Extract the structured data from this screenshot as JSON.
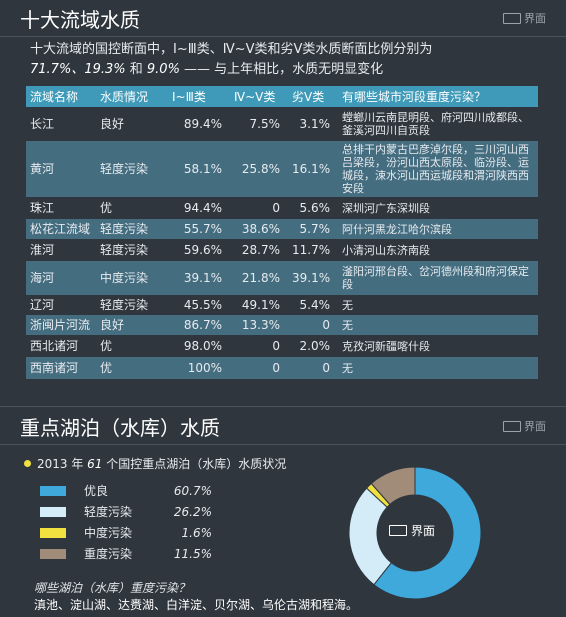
{
  "section1": {
    "title": "十大流域水质",
    "logo_text": "界面",
    "intro_line1": "十大流域的国控断面中，Ⅰ~Ⅲ类、Ⅳ~Ⅴ类和劣Ⅴ类水质断面比例分别为",
    "intro_p1": "71.7%、",
    "intro_p2": "19.3%",
    "intro_and": " 和 ",
    "intro_p3": "9.0%",
    "intro_tail": " —— 与上年相比，水质无明显变化"
  },
  "table": {
    "headers": [
      "流域名称",
      "水质情况",
      "Ⅰ~Ⅲ类",
      "Ⅳ~Ⅴ类",
      "劣Ⅴ类",
      "有哪些城市河段重度污染？"
    ],
    "rows": [
      [
        "长江",
        "良好",
        "89.4%",
        "7.5%",
        "3.1%",
        "螳螂川云南昆明段、府河四川成都段、釜溪河四川自贡段"
      ],
      [
        "黄河",
        "轻度污染",
        "58.1%",
        "25.8%",
        "16.1%",
        "总排干内蒙古巴彦淖尔段，三川河山西吕梁段，汾河山西太原段、临汾段、运城段，涑水河山西运城段和渭河陕西西安段"
      ],
      [
        "珠江",
        "优",
        "94.4%",
        "0",
        "5.6%",
        "深圳河广东深圳段"
      ],
      [
        "松花江流域",
        "轻度污染",
        "55.7%",
        "38.6%",
        "5.7%",
        "阿什河黑龙江哈尔滨段"
      ],
      [
        "淮河",
        "轻度污染",
        "59.6%",
        "28.7%",
        "11.7%",
        "小清河山东济南段"
      ],
      [
        "海河",
        "中度污染",
        "39.1%",
        "21.8%",
        "39.1%",
        "滏阳河邢台段、岔河德州段和府河保定段"
      ],
      [
        "辽河",
        "轻度污染",
        "45.5%",
        "49.1%",
        "5.4%",
        "无"
      ],
      [
        "浙闽片河流",
        "良好",
        "86.7%",
        "13.3%",
        "0",
        "无"
      ],
      [
        "西北诸河",
        "优",
        "98.0%",
        "0",
        "2.0%",
        "克孜河新疆喀什段"
      ],
      [
        "西南诸河",
        "优",
        "100%",
        "0",
        "0",
        "无"
      ]
    ]
  },
  "section2": {
    "title": "重点湖泊（水库）水质",
    "logo_text": "界面",
    "subhead_pre": "2013 年 ",
    "subhead_num": "61",
    "subhead_post": " 个国控重点湖泊（水库）水质状况",
    "center_logo_text": "界面",
    "question": "哪些湖泊（水库）重度污染？",
    "answer": "滇池、淀山湖、达赉湖、白洋淀、贝尔湖、乌伦古湖和程海。"
  },
  "chart_data": {
    "type": "pie",
    "title": "2013 年 61 个国控重点湖泊（水库）水质状况",
    "categories": [
      "优良",
      "轻度污染",
      "中度污染",
      "重度污染"
    ],
    "values": [
      60.7,
      26.2,
      1.6,
      11.5
    ],
    "labels": [
      "60.7%",
      "26.2%",
      "1.6%",
      "11.5%"
    ],
    "colors": [
      "#3fa9dc",
      "#d4ecf8",
      "#f0e040",
      "#a08c78"
    ],
    "donut": true
  }
}
